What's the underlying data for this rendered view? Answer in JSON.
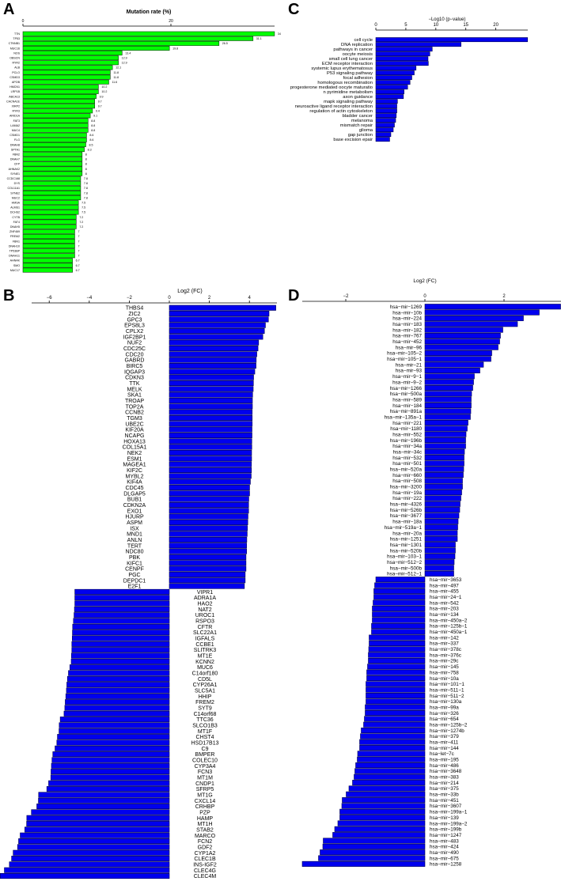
{
  "panel_letters": [
    "A",
    "B",
    "C",
    "D"
  ],
  "chart_data": [
    {
      "panel": "A",
      "type": "bar",
      "orientation": "horizontal",
      "xlabel": "Mutation rate (%)",
      "ticks": [
        0,
        20
      ],
      "xlim": [
        0,
        34
      ],
      "bar_color": "#00ff00",
      "show_value_labels": true,
      "categories": [
        "TTN",
        "TP53",
        "CTNNB1",
        "MUC16",
        "NOS",
        "OBSCN",
        "RYR2",
        "ALB",
        "PCLO",
        "CSMD3",
        "APOB",
        "HMCN1",
        "LRP1B",
        "ABCA13",
        "CACNA1E",
        "XIRP2",
        "RYR3",
        "ARID1A",
        "FAT3",
        "LAMA2",
        "MUC4",
        "CSMD1",
        "FLG",
        "DNAH8",
        "SPTA1",
        "FBN2",
        "DNAH7",
        "CFP",
        "AHNAK2",
        "SYNE1",
        "CCDC168",
        "DYS",
        "COL11A1",
        "SYNE2",
        "MUC2",
        "HMSA",
        "ALMS1",
        "DCHS2",
        "CYTB",
        "FAT4",
        "DNAH5",
        "ZNF469",
        "FREM2",
        "FBN1",
        "DNAH10",
        "TP53BP",
        "DNAH11",
        "AHNAK",
        "SMO",
        "MUC17"
      ],
      "values": [
        34,
        31.1,
        26.5,
        19.8,
        13.4,
        12.9,
        12.9,
        12.1,
        11.8,
        11.8,
        11.6,
        10.2,
        10.2,
        9.9,
        9.7,
        9.7,
        9.4,
        9.1,
        8.8,
        8.8,
        8.8,
        8.6,
        8.6,
        8.5,
        8.3,
        8,
        8,
        8,
        8,
        8,
        7.8,
        7.8,
        7.8,
        7.8,
        7.8,
        7.5,
        7.5,
        7.5,
        7.2,
        7.2,
        7.2,
        7,
        7,
        7,
        7,
        7,
        7,
        6.7,
        6.7,
        6.7
      ]
    },
    {
      "panel": "B",
      "type": "bar",
      "orientation": "horizontal",
      "xlabel": "Log2 (FC)",
      "ticks": [
        -6,
        -4,
        -2,
        0,
        2,
        4
      ],
      "xlim": [
        -8.45,
        5.35
      ],
      "bar_color": "#0000ee",
      "categories": [
        "THBS4",
        "ZIC2",
        "GPC3",
        "EPS8L3",
        "CPLX2",
        "IGF2BP1",
        "NUF2",
        "CDC25C",
        "CDC20",
        "GABRD",
        "BIRC5",
        "IQGAP3",
        "CDKN3",
        "TTK",
        "MELK",
        "SKA1",
        "TROAP",
        "TOP2A",
        "CCNB2",
        "TGM3",
        "UBE2C",
        "KIF20A",
        "NCAPG",
        "HOXA13",
        "COL15A1",
        "NEK2",
        "ESM1",
        "MAGEA1",
        "KIF2C",
        "MYBL2",
        "KIF4A",
        "CDC45",
        "DLGAP5",
        "BUB1",
        "CDKN2A",
        "EXO1",
        "HJURP",
        "ASPM",
        "ISX",
        "MND1",
        "ANLN",
        "TERT",
        "NDC80",
        "PBK",
        "KIFC1",
        "CENPF",
        "PGC",
        "DEPDC1",
        "E2F1",
        "VIPR1",
        "ADRA1A",
        "HAO2",
        "NAT2",
        "UROC1",
        "RSPO3",
        "CFTR",
        "SLC22A1",
        "IGFALS",
        "CCBE1",
        "SLITRK3",
        "MT1E",
        "KCNN2",
        "MUC6",
        "C14orf180",
        "CD5L",
        "CYP26A1",
        "SLC5A1",
        "HHIP",
        "FREM2",
        "SYT9",
        "C14orf68",
        "TTC36",
        "SLCO1B3",
        "MT1F",
        "CHST4",
        "HSD17B13",
        "C9",
        "BMPER",
        "COLEC10",
        "CYP3A4",
        "FCN3",
        "MT1M",
        "CNDP1",
        "SFRP5",
        "MT1G",
        "CXCL14",
        "CRHBP",
        "PZP",
        "HAMP",
        "MT1H",
        "STAB2",
        "MARCO",
        "FCN2",
        "GDF2",
        "CYP1A2",
        "CLEC1B",
        "INS-IGF2",
        "CLEC4G",
        "CLEC4M"
      ],
      "values": [
        5.32,
        4.98,
        4.95,
        4.8,
        4.75,
        4.67,
        4.46,
        4.43,
        4.37,
        4.34,
        4.33,
        4.27,
        4.21,
        4.2,
        4.19,
        4.16,
        4.15,
        4.15,
        4.14,
        4.14,
        4.14,
        4.13,
        4.13,
        4.12,
        4.12,
        4.11,
        4.11,
        4.1,
        4.1,
        4.09,
        4.05,
        4.01,
        4.01,
        3.97,
        3.96,
        3.96,
        3.93,
        3.92,
        3.9,
        3.89,
        3.87,
        3.86,
        3.86,
        3.83,
        3.83,
        3.83,
        3.79,
        3.79,
        3.75,
        -4.72,
        -4.72,
        -4.72,
        -4.74,
        -4.76,
        -4.79,
        -4.83,
        -4.84,
        -4.85,
        -4.87,
        -4.87,
        -4.89,
        -4.9,
        -4.97,
        -5.04,
        -5.09,
        -5.12,
        -5.14,
        -5.17,
        -5.2,
        -5.22,
        -5.26,
        -5.45,
        -5.5,
        -5.51,
        -5.59,
        -5.62,
        -5.71,
        -5.82,
        -5.86,
        -5.89,
        -5.91,
        -5.92,
        -6.03,
        -6.12,
        -6.53,
        -6.54,
        -6.62,
        -6.89,
        -7.12,
        -7.13,
        -7.22,
        -7.45,
        -7.53,
        -7.58,
        -7.8,
        -7.88,
        -7.99,
        -8.24,
        -8.45
      ]
    },
    {
      "panel": "C",
      "type": "bar",
      "orientation": "horizontal",
      "xlabel": "−Log10 (p−value)",
      "ticks": [
        0,
        5,
        10,
        15,
        20
      ],
      "xlim": [
        0,
        25.3
      ],
      "bar_color": "#0000ee",
      "categories": [
        "cell cycle",
        "DNA replication",
        "pathways in cancer",
        "oocyte meiosis",
        "small cell lung cancer",
        "ECM receptor interaction",
        "systemic lupus erythematosus",
        "P53 signaling pathway",
        "focal adhesion",
        "homologous recombination",
        "progesterone mediated oocyte maturatio",
        "n pyrimidine metabolism",
        "axon guidance",
        "mapk signaling pathway",
        "neuroactive ligand receptor interaction",
        "regulation of actin cytoskeleton",
        "bladder cancer",
        "melanoma",
        "mismatch repair",
        "glioma",
        "gap junction",
        "base excision epair"
      ],
      "values": [
        25.3,
        14.2,
        9.4,
        9.0,
        8.7,
        8.75,
        6.7,
        6.4,
        6.0,
        5.7,
        5.3,
        4.7,
        4.6,
        3.6,
        3.5,
        3.5,
        3.4,
        3.3,
        3.1,
        2.9,
        2.5,
        2.3
      ]
    },
    {
      "panel": "D",
      "type": "bar",
      "orientation": "horizontal",
      "xlabel": "Log2 (FC)",
      "ticks": [
        -2,
        0,
        2
      ],
      "xlim": [
        -3.1,
        3.43
      ],
      "bar_color": "#0000ee",
      "categories": [
        "hsa−mir−1269",
        "hsa−mir−10b",
        "hsa−mir−224",
        "hsa−mir−183",
        "hsa−mir−182",
        "hsa−mir−767",
        "hsa−mir−452",
        "hsa−mir−96",
        "hsa−mir−105−2",
        "hsa−mir−105−1",
        "hsa−mir−21",
        "hsa−mir−93",
        "hsa−mir−9−1",
        "hsa−mir−9−2",
        "hsa−mir−1266",
        "hsa−mir−500a",
        "hsa−mir−589",
        "hsa−mir−184",
        "hsa−mir−891a",
        "hsa−mir−135a−1",
        "hsa−mir−221",
        "hsa−mir−1180",
        "hsa−mir−552",
        "hsa−mir−196b",
        "hsa−mir−34a",
        "hsa−mir−34c",
        "hsa−mir−532",
        "hsa−mir−501",
        "hsa−mir−520a",
        "hsa−mir−660",
        "hsa−mir−508",
        "hsa−mir−3200",
        "hsa−mir−19a",
        "hsa−mir−222",
        "hsa−mir−4326",
        "hsa−mir−526b",
        "hsa−mir−3677",
        "hsa−mir−18a",
        "hsa−mir−519a−1",
        "hsa−mir−20a",
        "hsa−mir−1251",
        "hsa−mir−1301",
        "hsa−mir−520b",
        "hsa−mir−103−1",
        "hsa−mir−512−2",
        "hsa−mir−500b",
        "hsa−mir−512−1",
        "hsa−mir−3653",
        "hsa−mir−497",
        "hsa−mir−455",
        "hsa−mir−24−1",
        "hsa−mir−542",
        "hsa−mir−203",
        "hsa−mir−134",
        "hsa−mir−450a−2",
        "hsa−mir−125b−1",
        "hsa−mir−450a−1",
        "hsa−mir−142",
        "hsa−mir−337",
        "hsa−mir−378c",
        "hsa−mir−376c",
        "hsa−mir−29c",
        "hsa−mir−145",
        "hsa−mir−758",
        "hsa−mir−10a",
        "hsa−mir−101−1",
        "hsa−mir−511−1",
        "hsa−mir−511−2",
        "hsa−mir−130a",
        "hsa−mir−99a",
        "hsa−mir−326",
        "hsa−mir−654",
        "hsa−mir−125b−2",
        "hsa−mir−1274b",
        "hsa−mir−379",
        "hsa−mir−411",
        "hsa−mir−144",
        "hsa−let−7c",
        "hsa−mir−195",
        "hsa−mir−486",
        "hsa−mir−3648",
        "hsa−mir−383",
        "hsa−mir−214",
        "hsa−mir−375",
        "hsa−mir−33b",
        "hsa−mir−451",
        "hsa−mir−3607",
        "hsa−mir−199a−1",
        "hsa−mir−139",
        "hsa−mir−199a−2",
        "hsa−mir−199b",
        "hsa−mir−1247",
        "hsa−mir−483",
        "hsa−mir−424",
        "hsa−mir−490",
        "hsa−mir−675",
        "hsa−mir−1258"
      ],
      "values": [
        3.43,
        2.89,
        2.49,
        2.34,
        1.97,
        1.91,
        1.89,
        1.85,
        1.69,
        1.67,
        1.48,
        1.39,
        1.25,
        1.23,
        1.21,
        1.18,
        1.17,
        1.17,
        1.16,
        1.15,
        1.09,
        1.07,
        1.04,
        1.03,
        1.03,
        1.0,
        0.99,
        0.99,
        0.98,
        0.97,
        0.95,
        0.95,
        0.93,
        0.91,
        0.89,
        0.88,
        0.86,
        0.84,
        0.83,
        0.82,
        0.82,
        0.77,
        0.77,
        0.76,
        0.74,
        0.73,
        0.73,
        -1.24,
        -1.27,
        -1.29,
        -1.29,
        -1.31,
        -1.33,
        -1.33,
        -1.33,
        -1.35,
        -1.35,
        -1.41,
        -1.41,
        -1.42,
        -1.43,
        -1.43,
        -1.45,
        -1.47,
        -1.47,
        -1.49,
        -1.49,
        -1.49,
        -1.49,
        -1.51,
        -1.51,
        -1.53,
        -1.55,
        -1.61,
        -1.63,
        -1.65,
        -1.65,
        -1.7,
        -1.71,
        -1.75,
        -1.77,
        -1.79,
        -1.83,
        -1.92,
        -1.99,
        -2.09,
        -2.1,
        -2.15,
        -2.15,
        -2.2,
        -2.28,
        -2.33,
        -2.57,
        -2.58,
        -2.65,
        -2.69,
        -3.1
      ]
    }
  ]
}
